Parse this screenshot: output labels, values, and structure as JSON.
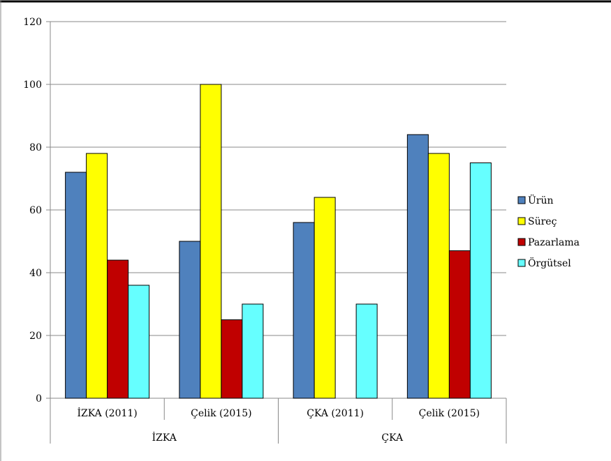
{
  "chart_data": {
    "type": "bar",
    "title": "",
    "xlabel": "",
    "ylabel": "",
    "ylim": [
      0,
      120
    ],
    "yticks": [
      0,
      20,
      40,
      60,
      80,
      100,
      120
    ],
    "grid": true,
    "legend_position": "right",
    "categories": [
      "İZKA (2011)",
      "Çelik (2015)",
      "ÇKA (2011)",
      "Çelik (2015)"
    ],
    "groups": [
      {
        "label": "İZKA",
        "categories": [
          0,
          1
        ]
      },
      {
        "label": "ÇKA",
        "categories": [
          2,
          3
        ]
      }
    ],
    "series": [
      {
        "name": "Ürün",
        "color": "#4F81BD",
        "values": [
          72,
          50,
          56,
          84
        ]
      },
      {
        "name": "Süreç",
        "color": "#FFFF00",
        "values": [
          78,
          100,
          64,
          78
        ]
      },
      {
        "name": "Pazarlama",
        "color": "#C00000",
        "values": [
          44,
          25,
          null,
          47
        ]
      },
      {
        "name": "Örgütsel",
        "color": "#66FFFF",
        "values": [
          36,
          30,
          30,
          75
        ]
      }
    ]
  }
}
